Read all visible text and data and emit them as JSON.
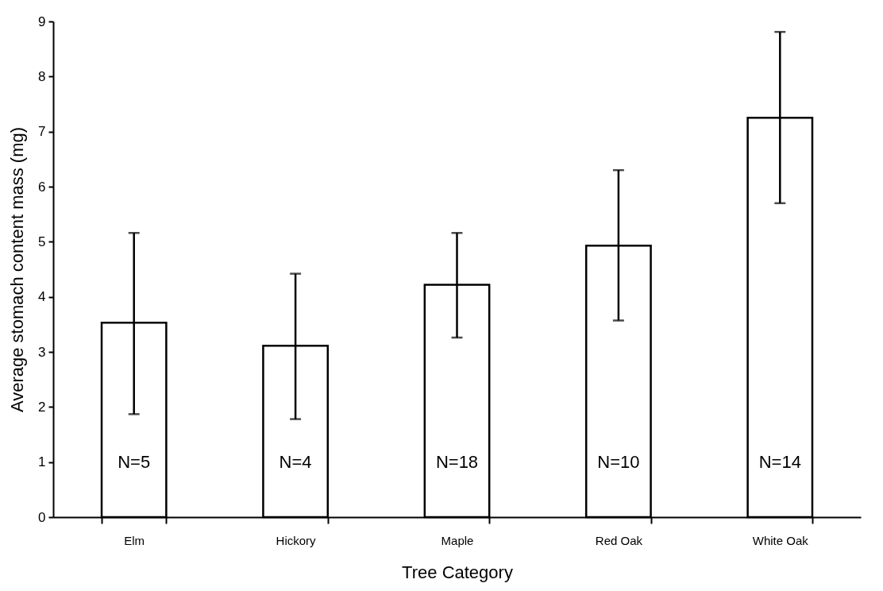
{
  "chart_data": {
    "type": "bar",
    "xlabel": "Tree Category",
    "ylabel": "Average stomach content mass (mg)",
    "categories": [
      "Elm",
      "Hickory",
      "Maple",
      "Red Oak",
      "White Oak"
    ],
    "values": [
      3.53,
      3.11,
      4.22,
      4.93,
      7.25
    ],
    "errors": [
      [
        1.87,
        5.16
      ],
      [
        1.78,
        4.42
      ],
      [
        3.26,
        5.16
      ],
      [
        3.57,
        6.3
      ],
      [
        5.7,
        8.81
      ]
    ],
    "color": "#ffffff",
    "ylim": [
      0,
      9
    ],
    "yticks": [
      0,
      1,
      2,
      3,
      4,
      5,
      6,
      7,
      8,
      9
    ],
    "grid": false,
    "annotations": [
      "N=5",
      "N=4",
      "N=18",
      "N=10",
      "N=14"
    ]
  }
}
